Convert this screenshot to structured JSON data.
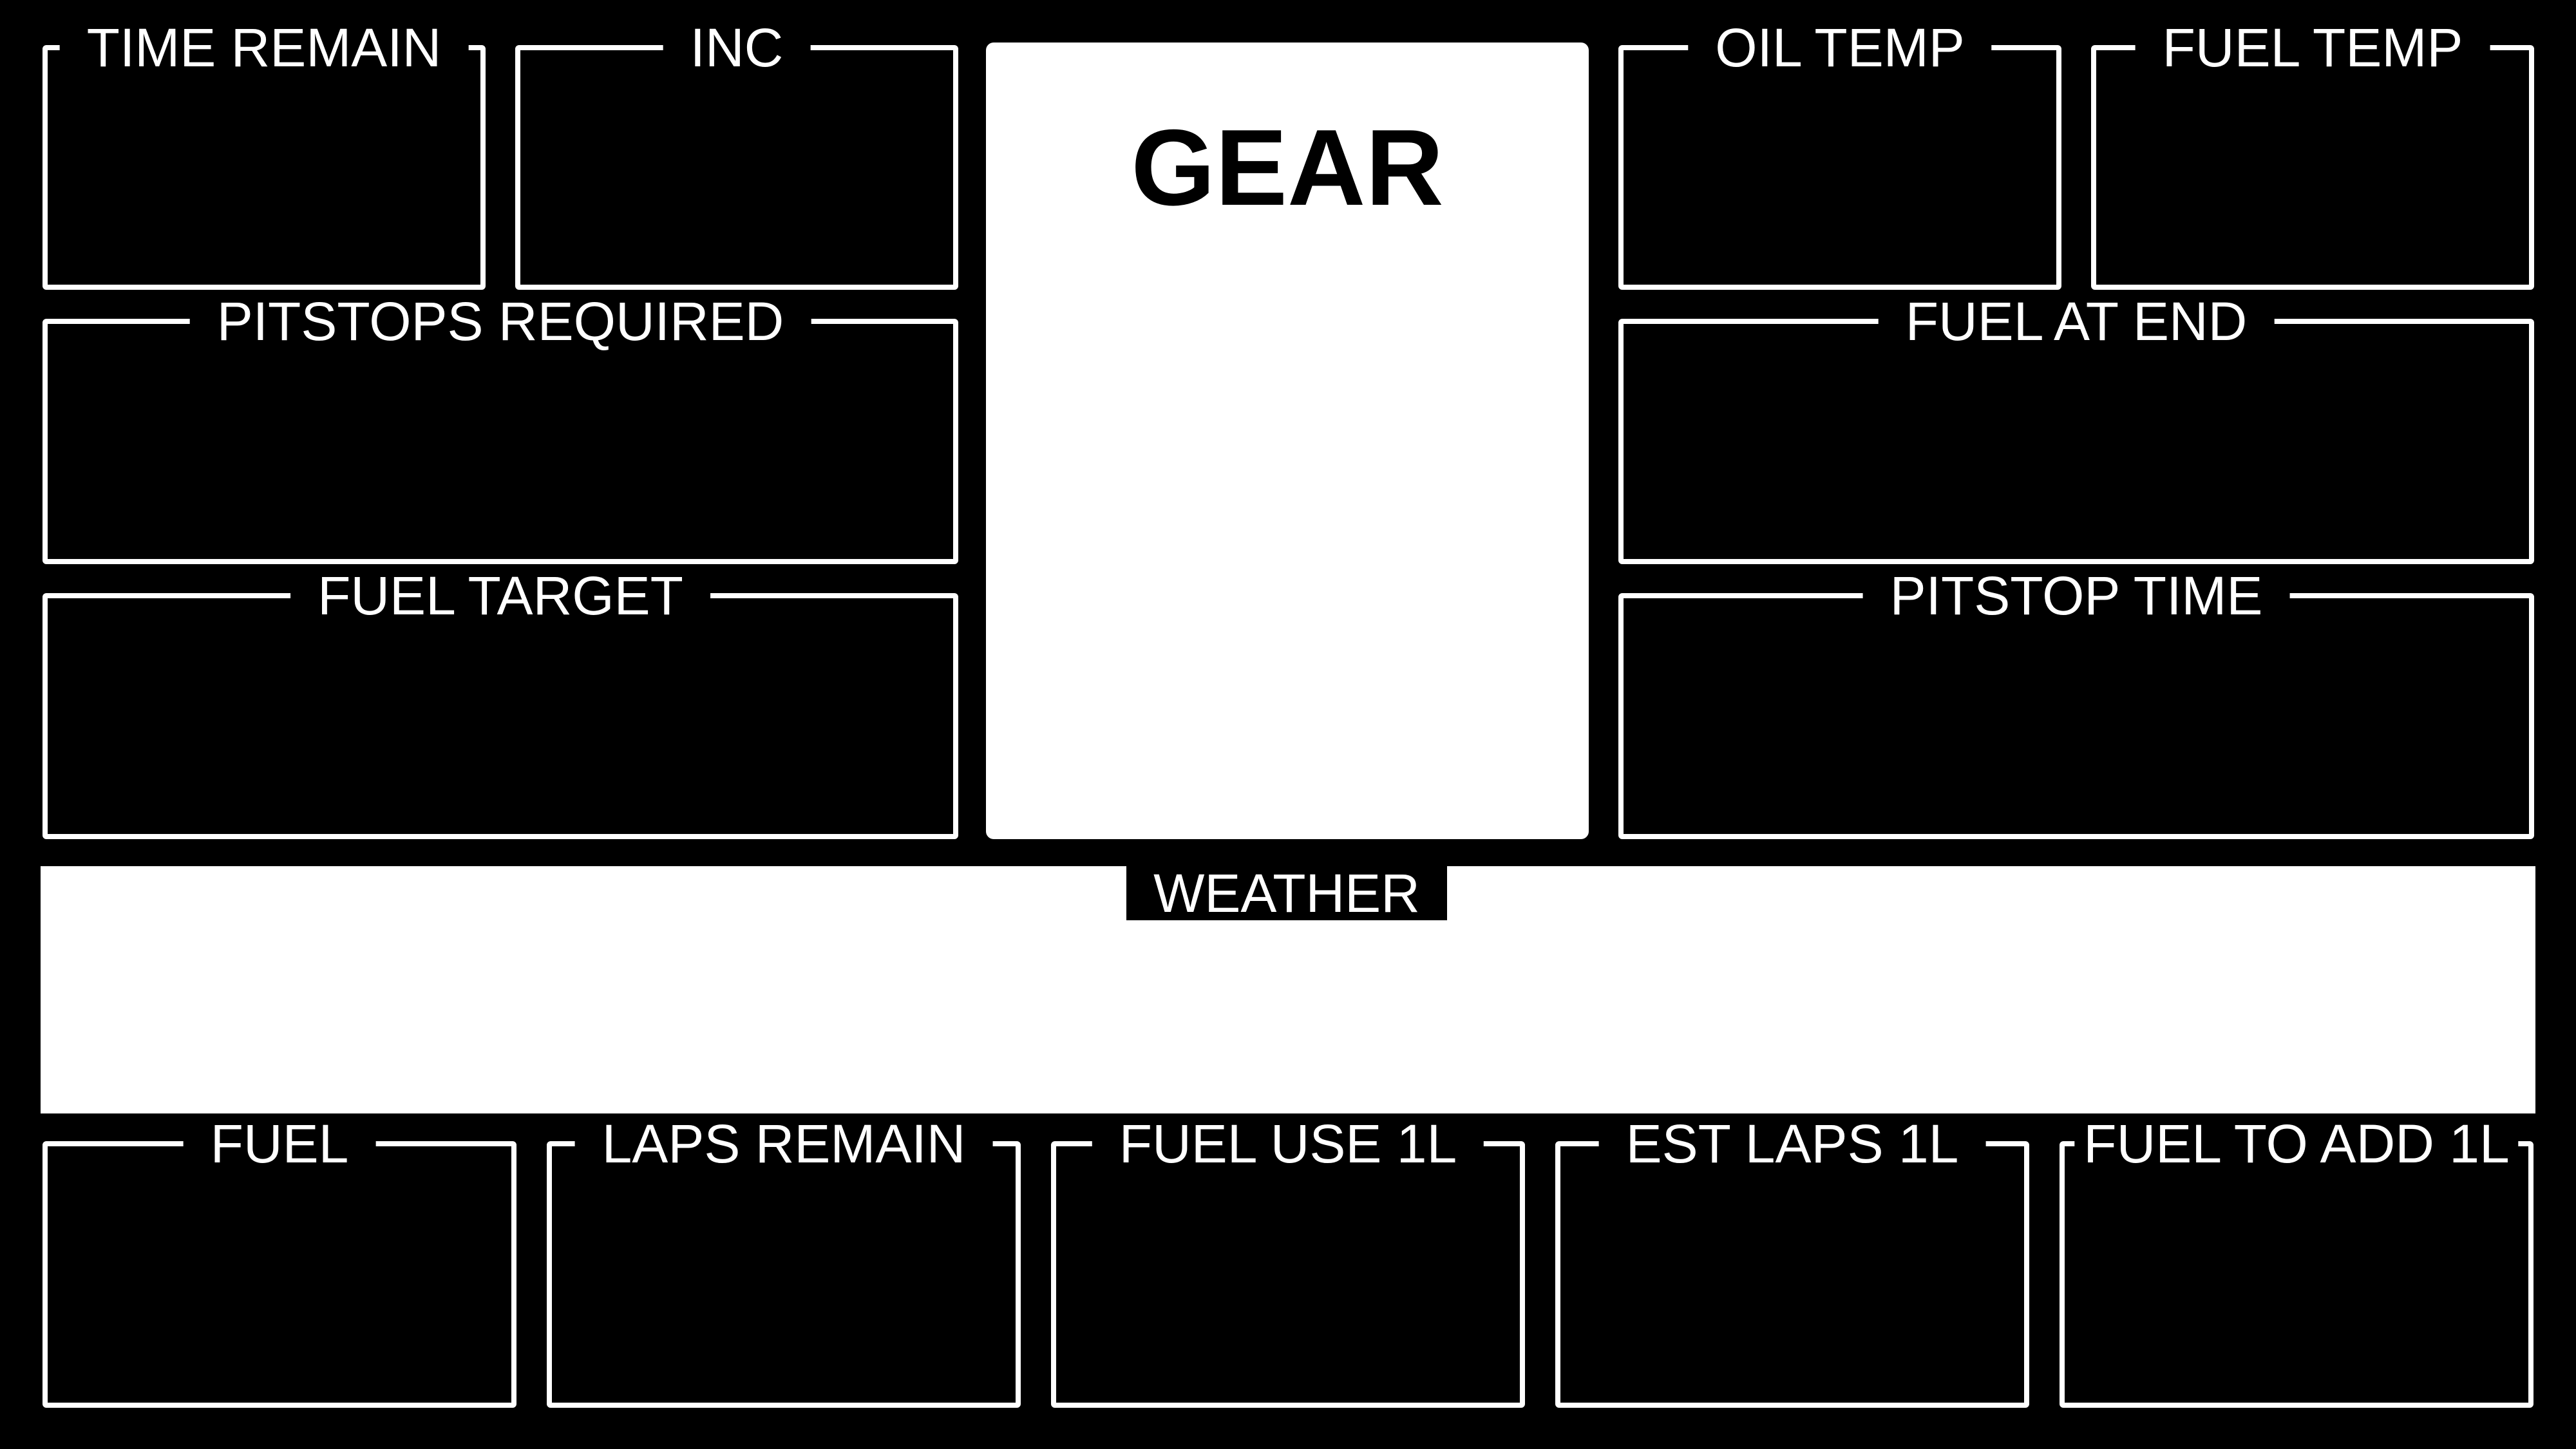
{
  "gear": {
    "label": "GEAR"
  },
  "weather": {
    "label": "WEATHER"
  },
  "colors": {
    "background": "#000000",
    "foreground": "#ffffff"
  },
  "panels": {
    "time_remain": "TIME REMAIN",
    "inc": "INC",
    "oil_temp": "OIL TEMP",
    "fuel_temp": "FUEL TEMP",
    "pitstops_required": "PITSTOPS REQUIRED",
    "fuel_at_end": "FUEL AT END",
    "fuel_target": "FUEL TARGET",
    "pitstop_time": "PITSTOP TIME",
    "fuel": "FUEL",
    "laps_remain": "LAPS REMAIN",
    "fuel_use_1l": "FUEL USE 1L",
    "est_laps_1l": "EST LAPS 1L",
    "fuel_to_add_1l": "FUEL TO ADD 1L"
  }
}
